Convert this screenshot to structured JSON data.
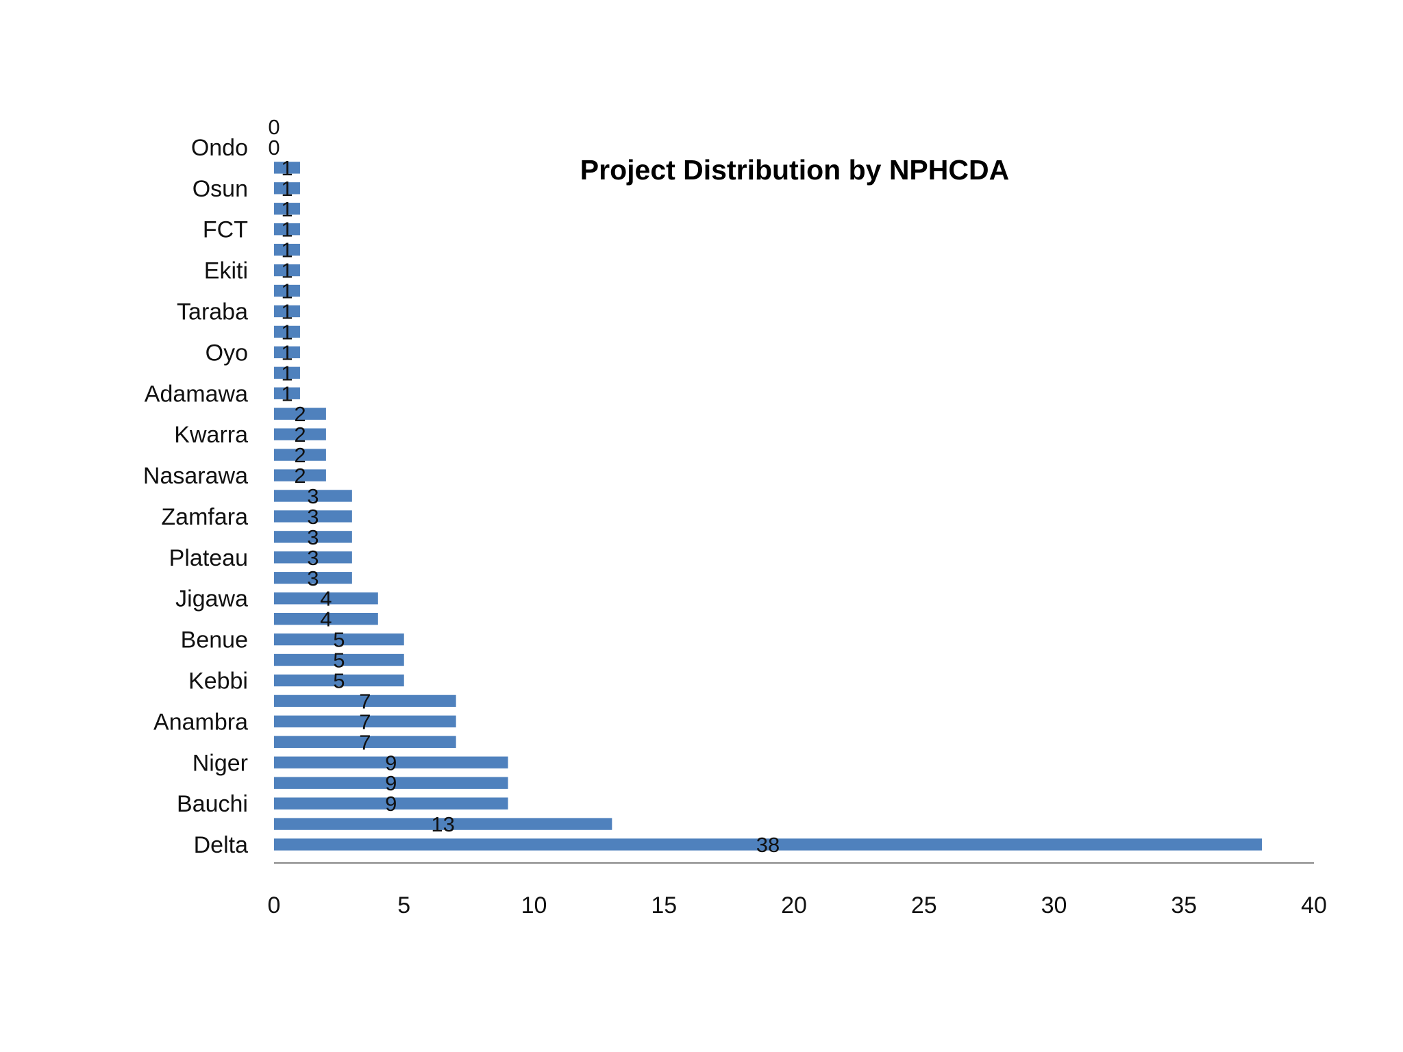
{
  "chart_data": {
    "type": "bar",
    "orientation": "horizontal",
    "title": "Project Distribution by NPHCDA",
    "title_position": "top-right",
    "categories": [
      "Delta",
      "",
      "Bauchi",
      "",
      "Niger",
      "",
      "Anambra",
      "",
      "Kebbi",
      "",
      "Benue",
      "",
      "Jigawa",
      "",
      "Plateau",
      "",
      "Zamfara",
      "",
      "Nasarawa",
      "",
      "Kwarra",
      "",
      "Adamawa",
      "",
      "Oyo",
      "",
      "Taraba",
      "",
      "Ekiti",
      "",
      "FCT",
      "",
      "Osun",
      "",
      "Ondo",
      ""
    ],
    "values": [
      38,
      13,
      9,
      9,
      9,
      7,
      7,
      7,
      5,
      5,
      5,
      4,
      4,
      3,
      3,
      3,
      3,
      3,
      2,
      2,
      2,
      2,
      1,
      1,
      1,
      1,
      1,
      1,
      1,
      1,
      1,
      1,
      1,
      1,
      0,
      0
    ],
    "xlim": [
      0,
      40
    ],
    "xticks": [
      0,
      5,
      10,
      15,
      20,
      25,
      30,
      35,
      40
    ],
    "xlabel": "",
    "ylabel": "",
    "grid": false,
    "legend": "none",
    "bar_color": "#4F81BD",
    "axis_color": "#888888"
  }
}
